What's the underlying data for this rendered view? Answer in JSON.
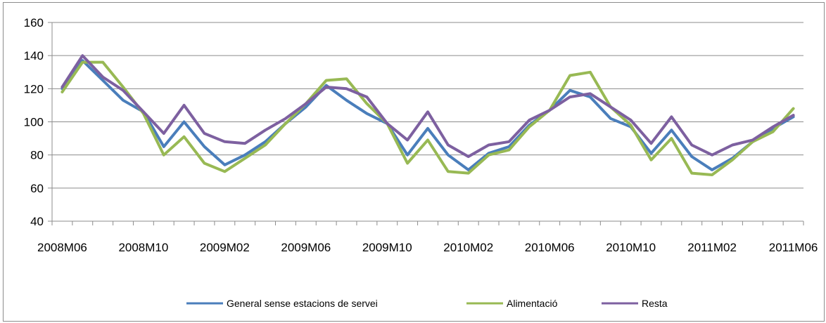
{
  "chart_data": {
    "type": "line",
    "title": "",
    "xlabel": "",
    "ylabel": "",
    "ylim": [
      40,
      160
    ],
    "y_ticks": [
      40,
      60,
      80,
      100,
      120,
      140,
      160
    ],
    "grid": "horizontal",
    "legend_position": "bottom",
    "x": [
      "2008M06",
      "2008M07",
      "2008M08",
      "2008M09",
      "2008M10",
      "2008M11",
      "2008M12",
      "2009M01",
      "2009M02",
      "2009M03",
      "2009M04",
      "2009M05",
      "2009M06",
      "2009M07",
      "2009M08",
      "2009M09",
      "2009M10",
      "2009M11",
      "2009M12",
      "2010M01",
      "2010M02",
      "2010M03",
      "2010M04",
      "2010M05",
      "2010M06",
      "2010M07",
      "2010M08",
      "2010M09",
      "2010M10",
      "2010M11",
      "2010M12",
      "2011M01",
      "2011M02",
      "2011M03",
      "2011M04",
      "2011M05",
      "2011M06"
    ],
    "x_tick_labels": [
      "2008M06",
      "2008M10",
      "2009M02",
      "2009M06",
      "2009M10",
      "2010M02",
      "2010M06",
      "2010M10",
      "2011M02",
      "2011M06"
    ],
    "series": [
      {
        "name": "General sense estacions de servei",
        "color": "#4a7ebb",
        "values": [
          120,
          137,
          125,
          113,
          106,
          85,
          100,
          85,
          74,
          80,
          88,
          99,
          109,
          122,
          113,
          105,
          99,
          80,
          96,
          80,
          71,
          81,
          85,
          98,
          107,
          119,
          115,
          102,
          97,
          81,
          95,
          79,
          71,
          78,
          88,
          96,
          103
        ]
      },
      {
        "name": "Alimentació",
        "color": "#98b954",
        "values": [
          118,
          136,
          136,
          121,
          105,
          80,
          91,
          75,
          70,
          78,
          86,
          99,
          111,
          125,
          126,
          111,
          99,
          75,
          89,
          70,
          69,
          80,
          83,
          97,
          107,
          128,
          130,
          109,
          98,
          77,
          90,
          69,
          68,
          77,
          88,
          94,
          108
        ]
      },
      {
        "name": "Resta",
        "color": "#7d60a0",
        "values": [
          121,
          140,
          127,
          119,
          106,
          93,
          110,
          93,
          88,
          87,
          95,
          102,
          111,
          121,
          120,
          115,
          99,
          89,
          106,
          86,
          79,
          86,
          88,
          101,
          107,
          115,
          117,
          109,
          101,
          87,
          103,
          86,
          80,
          86,
          89,
          97,
          104
        ]
      }
    ]
  }
}
